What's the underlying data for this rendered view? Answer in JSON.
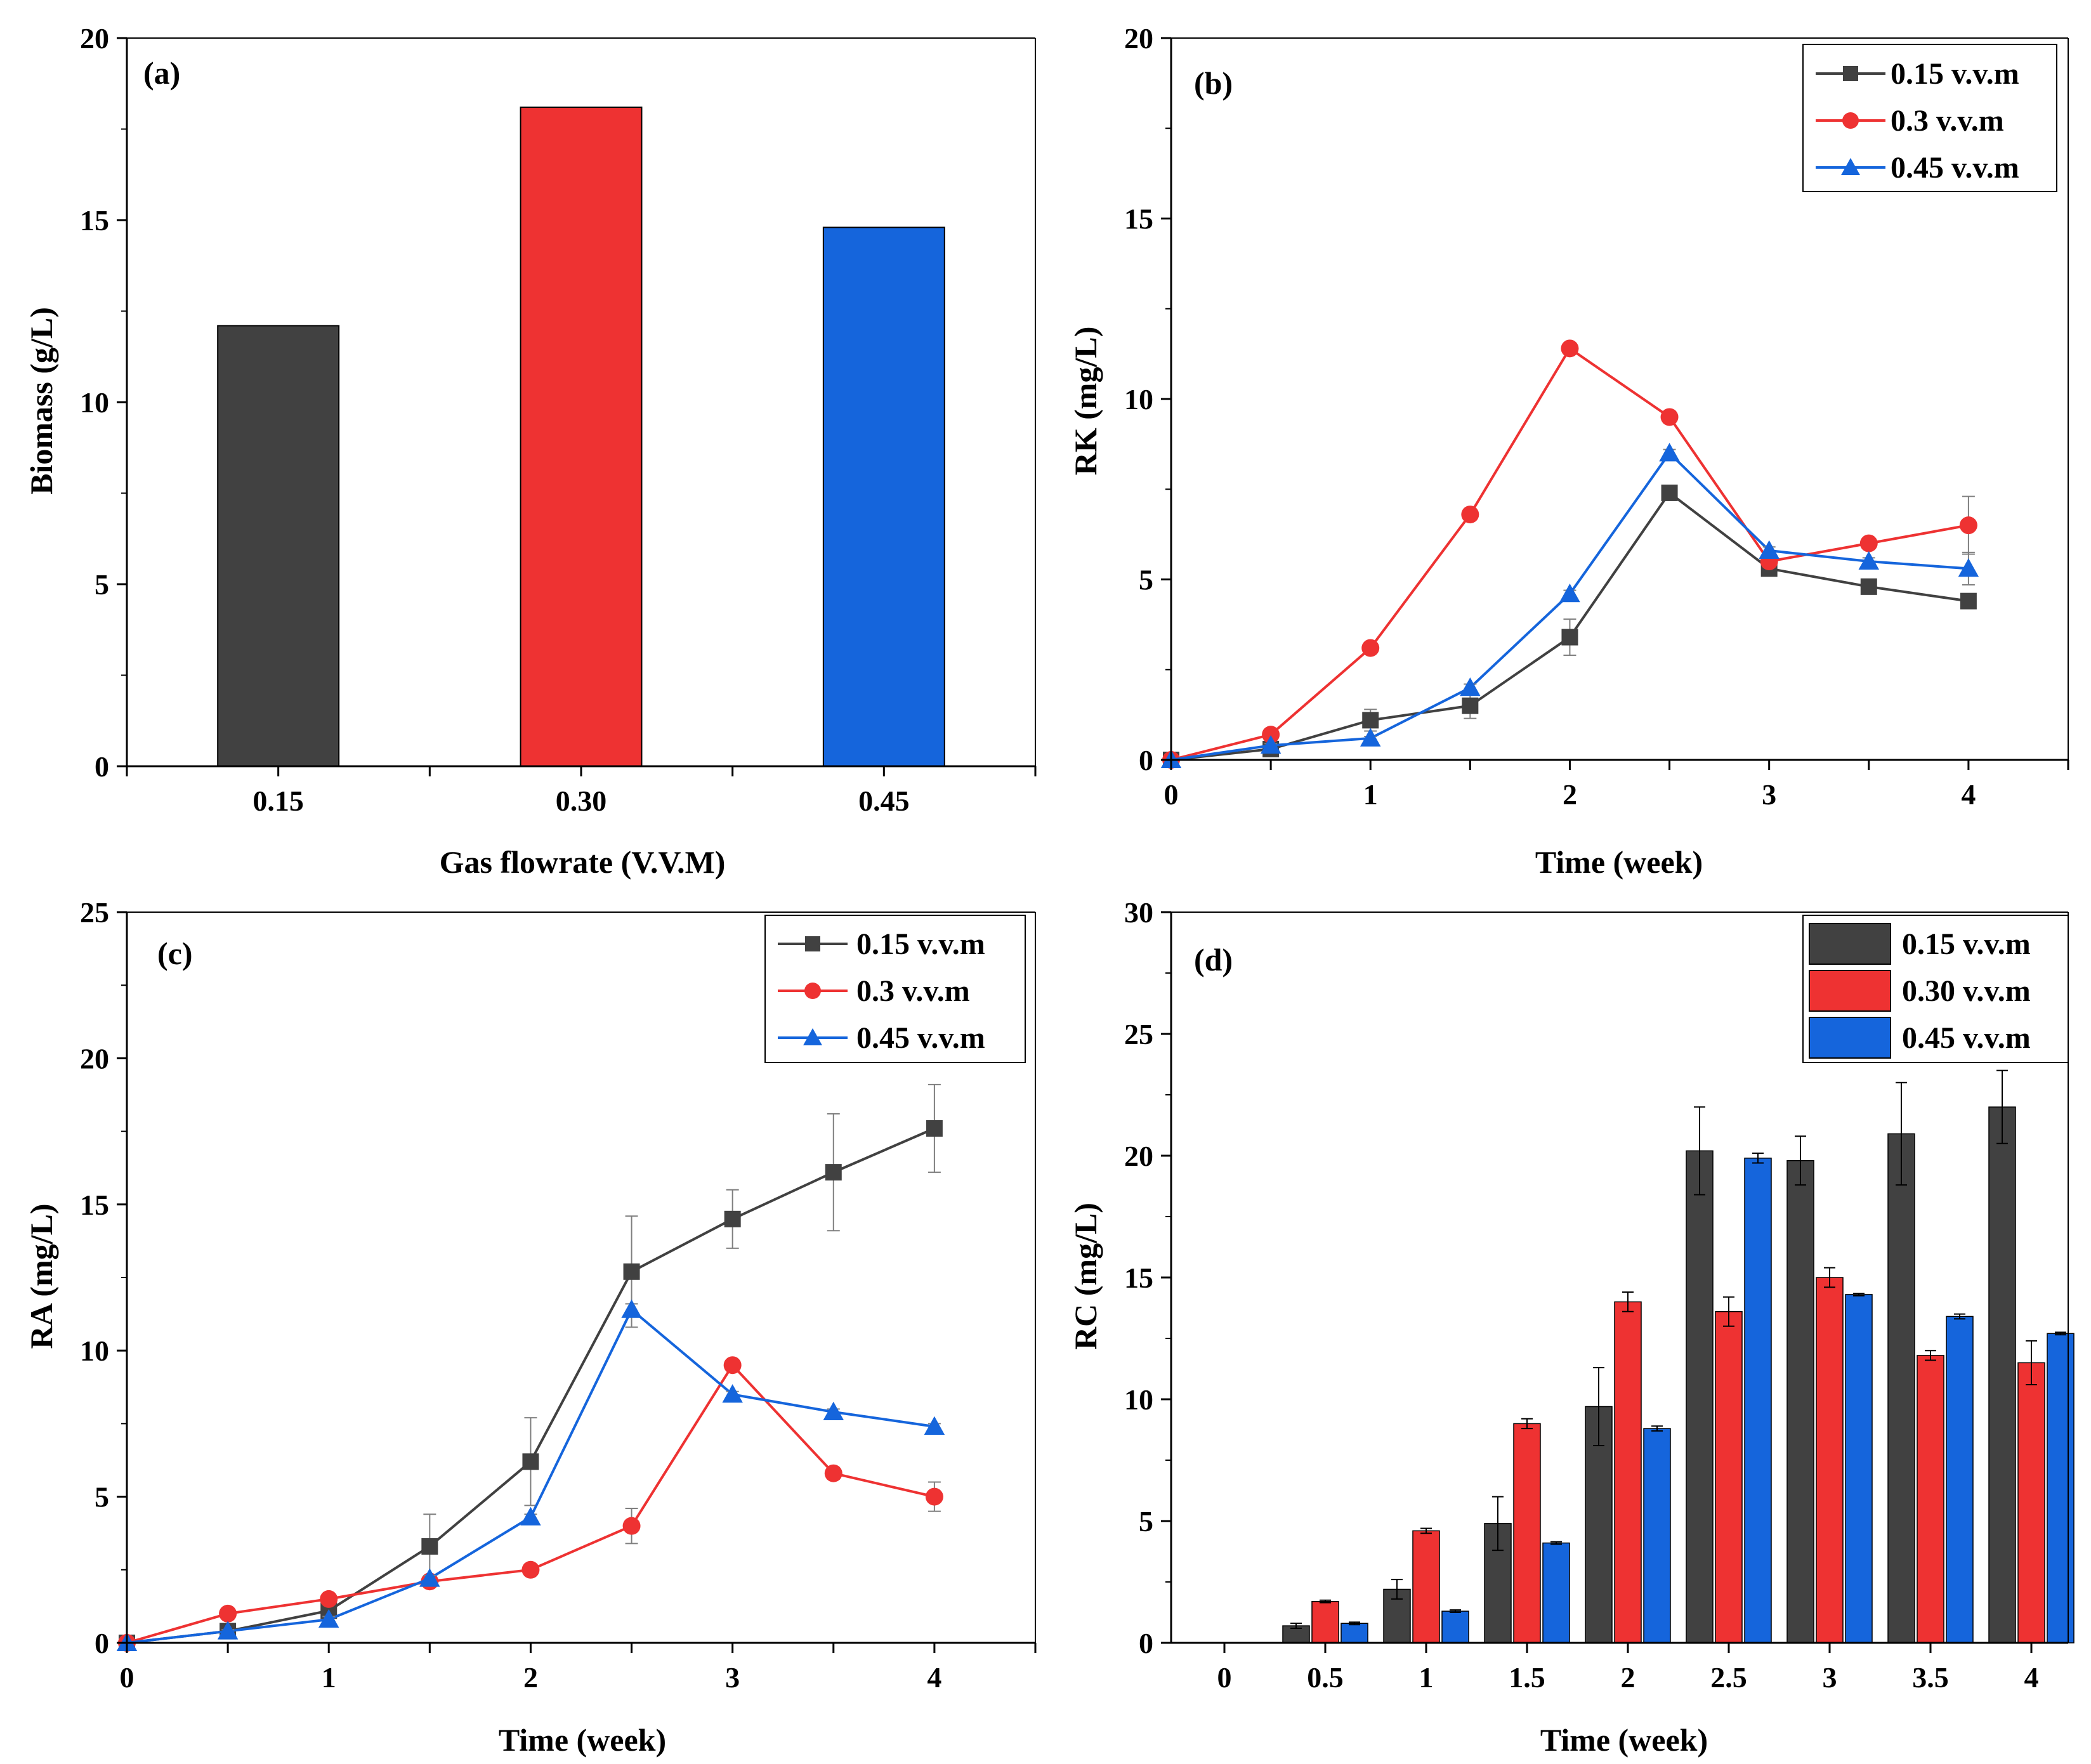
{
  "colors": {
    "s015": "#414141",
    "s030": "#ee3232",
    "s045": "#1565dc",
    "axis": "#000000",
    "err": "#7f7f7f"
  },
  "chart_data": [
    {
      "id": "a",
      "panel_label": "(a)",
      "type": "bar",
      "xlabel": "Gas flowrate (V.V.M)",
      "ylabel": "Biomass (g/L)",
      "ylim": [
        0,
        20
      ],
      "yticks": [
        0,
        5,
        10,
        15,
        20
      ],
      "categories": [
        "0.15",
        "0.30",
        "0.45"
      ],
      "values": [
        12.1,
        18.1,
        14.8
      ],
      "bar_colors": [
        "#414141",
        "#ee3232",
        "#1565dc"
      ]
    },
    {
      "id": "b",
      "panel_label": "(b)",
      "type": "line",
      "xlabel": "Time (week)",
      "ylabel": "RK (mg/L)",
      "xlim": [
        0,
        4.5
      ],
      "ylim": [
        0,
        20
      ],
      "xticks": [
        0,
        1,
        2,
        3,
        4
      ],
      "yticks": [
        0,
        5,
        10,
        15,
        20
      ],
      "x": [
        0,
        0.5,
        1,
        1.5,
        2,
        2.5,
        3,
        3.5,
        4
      ],
      "legend_position": "top-right",
      "series": [
        {
          "name": "0.15 v.v.m",
          "marker": "square",
          "color": "#414141",
          "values": [
            0,
            0.3,
            1.1,
            1.5,
            3.4,
            7.4,
            5.3,
            4.8,
            4.4
          ],
          "errors": [
            0,
            0.1,
            0.3,
            0.35,
            0.5,
            0.1,
            0.1,
            0.1,
            0.1
          ]
        },
        {
          "name": "0.3 v.v.m",
          "marker": "circle",
          "color": "#ee3232",
          "values": [
            0,
            0.7,
            3.1,
            6.8,
            11.4,
            9.5,
            5.5,
            6.0,
            6.5
          ],
          "errors": [
            0,
            0.05,
            0.1,
            0.1,
            0.1,
            0.1,
            0.1,
            0.15,
            0.8
          ]
        },
        {
          "name": "0.45 v.v.m",
          "marker": "triangle",
          "color": "#1565dc",
          "values": [
            0,
            0.4,
            0.6,
            2.0,
            4.6,
            8.5,
            5.8,
            5.5,
            5.3
          ],
          "errors": [
            0,
            0.05,
            0.05,
            0.1,
            0.1,
            0.1,
            0.1,
            0.1,
            0.45
          ]
        }
      ]
    },
    {
      "id": "c",
      "panel_label": "(c)",
      "type": "line",
      "xlabel": "Time (week)",
      "ylabel": "RA (mg/L)",
      "xlim": [
        0,
        4.5
      ],
      "ylim": [
        0,
        25
      ],
      "xticks": [
        0,
        1,
        2,
        3,
        4
      ],
      "yticks": [
        0,
        5,
        10,
        15,
        20,
        25
      ],
      "x": [
        0,
        0.5,
        1,
        1.5,
        2,
        2.5,
        3,
        3.5,
        4
      ],
      "legend_position": "top-right",
      "series": [
        {
          "name": "0.15 v.v.m",
          "marker": "square",
          "color": "#414141",
          "values": [
            0,
            0.4,
            1.1,
            3.3,
            6.2,
            12.7,
            14.5,
            16.1,
            17.6
          ],
          "errors": [
            0,
            0.1,
            0.2,
            1.1,
            1.5,
            1.9,
            1.0,
            2.0,
            1.5
          ]
        },
        {
          "name": "0.3 v.v.m",
          "marker": "circle",
          "color": "#ee3232",
          "values": [
            0,
            1.0,
            1.5,
            2.1,
            2.5,
            4.0,
            9.5,
            5.8,
            5.0
          ],
          "errors": [
            0,
            0.1,
            0.1,
            0.1,
            0.2,
            0.6,
            0.2,
            0.2,
            0.5
          ]
        },
        {
          "name": "0.45 v.v.m",
          "marker": "triangle",
          "color": "#1565dc",
          "values": [
            0,
            0.4,
            0.8,
            2.2,
            4.3,
            11.4,
            8.5,
            7.9,
            7.4
          ],
          "errors": [
            0,
            0.05,
            0.1,
            0.1,
            0.1,
            0.2,
            0.1,
            0.1,
            0.1
          ]
        }
      ]
    },
    {
      "id": "d",
      "panel_label": "(d)",
      "type": "bar",
      "xlabel": "Time (week)",
      "ylabel": "RC (mg/L)",
      "ylim": [
        0,
        30
      ],
      "yticks": [
        0,
        5,
        10,
        15,
        20,
        25,
        30
      ],
      "categories": [
        "0",
        "0.5",
        "1",
        "1.5",
        "2",
        "2.5",
        "3",
        "3.5",
        "4"
      ],
      "legend_position": "top-right",
      "series": [
        {
          "name": "0.15 v.v.m",
          "color": "#414141",
          "values": [
            0,
            0.7,
            2.2,
            4.9,
            9.7,
            20.2,
            19.8,
            20.9,
            22.0
          ],
          "errors": [
            0,
            0.1,
            0.4,
            1.1,
            1.6,
            1.8,
            1.0,
            2.1,
            1.5
          ]
        },
        {
          "name": "0.30 v.v.m",
          "color": "#ee3232",
          "values": [
            0,
            1.7,
            4.6,
            9.0,
            14.0,
            13.6,
            15.0,
            11.8,
            11.5
          ],
          "errors": [
            0,
            0.05,
            0.1,
            0.2,
            0.4,
            0.6,
            0.4,
            0.2,
            0.9
          ]
        },
        {
          "name": "0.45 v.v.m",
          "color": "#1565dc",
          "values": [
            0,
            0.8,
            1.3,
            4.1,
            8.8,
            19.9,
            14.3,
            13.4,
            12.7
          ],
          "errors": [
            0,
            0.05,
            0.05,
            0.05,
            0.1,
            0.2,
            0.05,
            0.1,
            0.05
          ]
        }
      ]
    }
  ]
}
